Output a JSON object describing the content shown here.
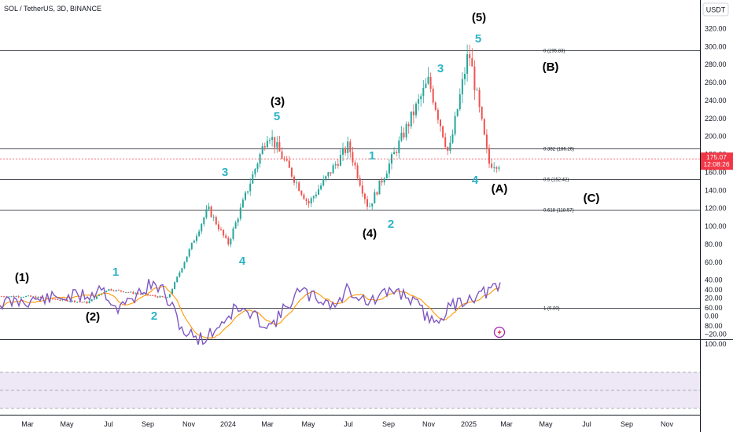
{
  "header": {
    "title": "SOL / TetherUS, 3D, BINANCE",
    "currency_button": "USDT"
  },
  "price_badge": {
    "price": "175.07",
    "countdown": "12:08:26"
  },
  "y_axis_labels": [
    "320.00",
    "300.00",
    "280.00",
    "260.00",
    "240.00",
    "220.00",
    "200.00",
    "180.00",
    "160.00",
    "140.00",
    "120.00",
    "100.00",
    "80.00",
    "60.00",
    "40.00",
    "20.00",
    "0.00",
    "−20.00"
  ],
  "rsi_axis_labels": [
    "100.00",
    "80.00",
    "60.00",
    "40.00"
  ],
  "x_axis_labels": [
    "Mar",
    "May",
    "Jul",
    "Sep",
    "Nov",
    "2024",
    "Mar",
    "May",
    "Jul",
    "Sep",
    "Nov",
    "2025",
    "Mar",
    "May",
    "Jul",
    "Sep",
    "Nov"
  ],
  "fib_labels": [
    {
      "label": "0 (295.83)",
      "value": 295.83
    },
    {
      "label": "0.382 (186.26)",
      "value": 186.26
    },
    {
      "label": "0.5 (152.42)",
      "value": 152.42
    },
    {
      "label": "0.618 (118.57)",
      "value": 118.57
    },
    {
      "label": "1 (9.00)",
      "value": 9.0
    }
  ],
  "wave_labels_major": [
    "(1)",
    "(2)",
    "(3)",
    "(4)",
    "(5)",
    "(A)",
    "(B)",
    "(C)"
  ],
  "wave_labels_minor": [
    "1",
    "2",
    "3",
    "4",
    "5",
    "1",
    "2",
    "3",
    "4",
    "5"
  ],
  "colors": {
    "up": "#26a69a",
    "down": "#ef5350",
    "rsi_line": "#7e57c2",
    "rsi_ma": "#ff9800",
    "rsi_band": "#ede7f6",
    "label_cyan": "#2bb3c6",
    "price_badge": "#f23645"
  },
  "chart_data": {
    "type": "candlestick",
    "title": "SOL / TetherUS, 3D, BINANCE",
    "ylim": [
      -20,
      330
    ],
    "current_price": 175.07,
    "key_points": [
      {
        "date": "2023-03",
        "price": 22
      },
      {
        "date": "2023-06",
        "price": 15
      },
      {
        "date": "2023-07",
        "price": 30
      },
      {
        "date": "2023-10",
        "price": 20
      },
      {
        "date": "2023-12",
        "price": 120
      },
      {
        "date": "2024-01",
        "price": 80
      },
      {
        "date": "2024-03",
        "price": 205
      },
      {
        "date": "2024-05",
        "price": 125
      },
      {
        "date": "2024-07",
        "price": 190
      },
      {
        "date": "2024-08",
        "price": 120
      },
      {
        "date": "2024-11",
        "price": 262
      },
      {
        "date": "2024-12",
        "price": 180
      },
      {
        "date": "2025-01",
        "price": 295
      },
      {
        "date": "2025-02",
        "price": 170
      }
    ],
    "rsi": {
      "ylim": [
        20,
        100
      ],
      "bands": [
        30,
        50,
        70
      ]
    }
  }
}
